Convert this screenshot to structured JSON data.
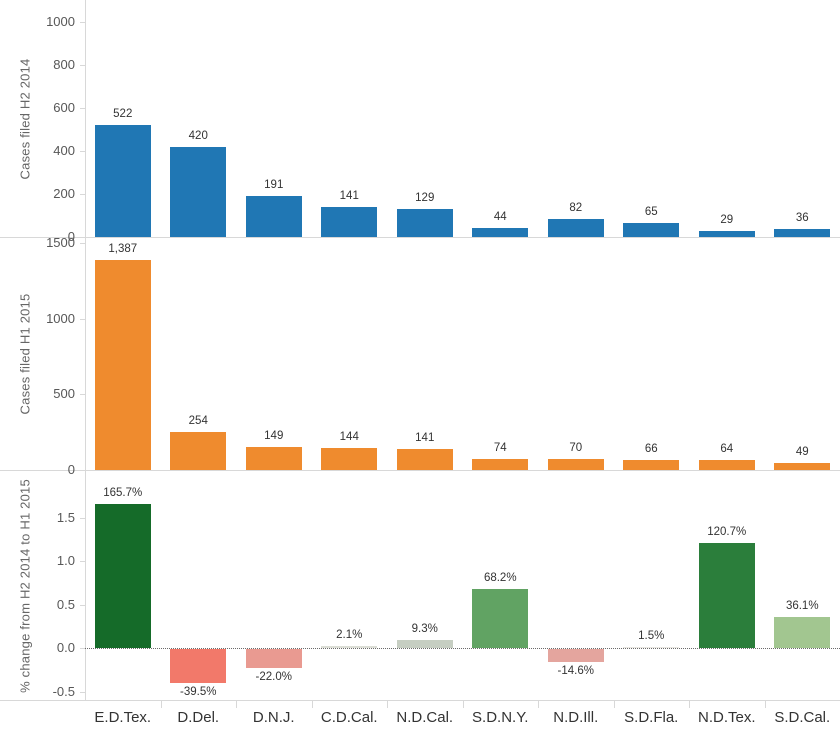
{
  "chart_data": {
    "type": "bar",
    "title": "",
    "xlabel": "",
    "categories": [
      "E.D.Tex.",
      "D.Del.",
      "D.N.J.",
      "C.D.Cal.",
      "N.D.Cal.",
      "S.D.N.Y.",
      "N.D.Ill.",
      "S.D.Fla.",
      "N.D.Tex.",
      "S.D.Cal."
    ],
    "legend": "none",
    "grid": "off",
    "panels": [
      {
        "ylabel": "Cases filed H2 2014",
        "bar_color": "#2077b4",
        "values": [
          522,
          420,
          191,
          141,
          129,
          44,
          82,
          65,
          29,
          36
        ],
        "value_labels": [
          "522",
          "420",
          "191",
          "141",
          "129",
          "44",
          "82",
          "65",
          "29",
          "36"
        ],
        "yticks": [
          {
            "v": 0,
            "label": "0"
          },
          {
            "v": 200,
            "label": "200"
          },
          {
            "v": 400,
            "label": "400"
          },
          {
            "v": 600,
            "label": "600"
          },
          {
            "v": 800,
            "label": "800"
          },
          {
            "v": 1000,
            "label": "1000"
          }
        ],
        "ylim": [
          0,
          1100
        ]
      },
      {
        "ylabel": "Cases filed H1 2015",
        "bar_color": "#ef8b2e",
        "values": [
          1387,
          254,
          149,
          144,
          141,
          74,
          70,
          66,
          64,
          49
        ],
        "value_labels": [
          "1,387",
          "254",
          "149",
          "144",
          "141",
          "74",
          "70",
          "66",
          "64",
          "49"
        ],
        "yticks": [
          {
            "v": 0,
            "label": "0"
          },
          {
            "v": 500,
            "label": "500"
          },
          {
            "v": 1000,
            "label": "1000"
          },
          {
            "v": 1500,
            "label": "1500"
          }
        ],
        "ylim": [
          0,
          1530
        ]
      },
      {
        "ylabel": "% change from H2 2014 to H1 2015",
        "values": [
          1.657,
          -0.395,
          -0.22,
          0.021,
          0.093,
          0.682,
          -0.146,
          0.015,
          1.207,
          0.361
        ],
        "value_labels": [
          "165.7%",
          "-39.5%",
          "-22.0%",
          "2.1%",
          "9.3%",
          "68.2%",
          "-14.6%",
          "1.5%",
          "120.7%",
          "36.1%"
        ],
        "bar_colors": [
          "#156b29",
          "#f2796a",
          "#e99a91",
          "#dcded6",
          "#c6cec2",
          "#61a363",
          "#e4a59e",
          "#e8e6e1",
          "#2b7e3b",
          "#a2c690"
        ],
        "yticks": [
          {
            "v": -0.5,
            "label": "-0.5"
          },
          {
            "v": 0,
            "label": "0.0"
          },
          {
            "v": 0.5,
            "label": "0.5"
          },
          {
            "v": 1,
            "label": "1.0"
          },
          {
            "v": 1.5,
            "label": "1.5"
          }
        ],
        "ylim": [
          -0.55,
          1.85
        ],
        "zero_line": true
      }
    ]
  },
  "colors": {
    "separator": "#d8d8d8",
    "tick_text": "#575757",
    "value_text": "#333333",
    "category_text": "#333333",
    "axis_title_text": "#666666",
    "background": "#ffffff"
  }
}
